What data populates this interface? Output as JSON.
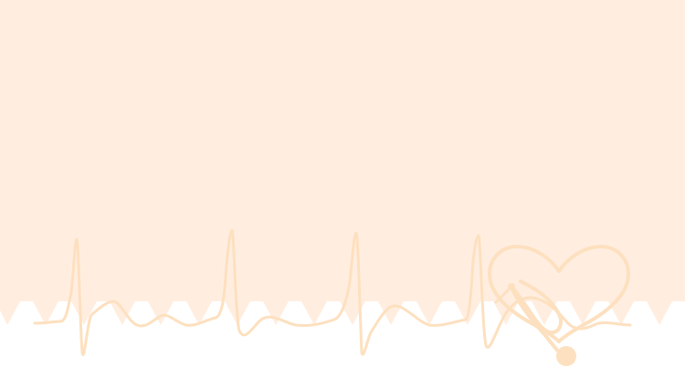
{
  "colors": {
    "background_fill": "#ffeee0",
    "page_white": "#ffffff",
    "line_stroke": "#fde0bf",
    "heart_stroke": "#fde0bf",
    "stethoscope_fill": "#fde0bf"
  },
  "icons": {
    "heart": "heart-icon",
    "stethoscope": "stethoscope-icon"
  },
  "decor": {
    "description_visible_text": ""
  }
}
